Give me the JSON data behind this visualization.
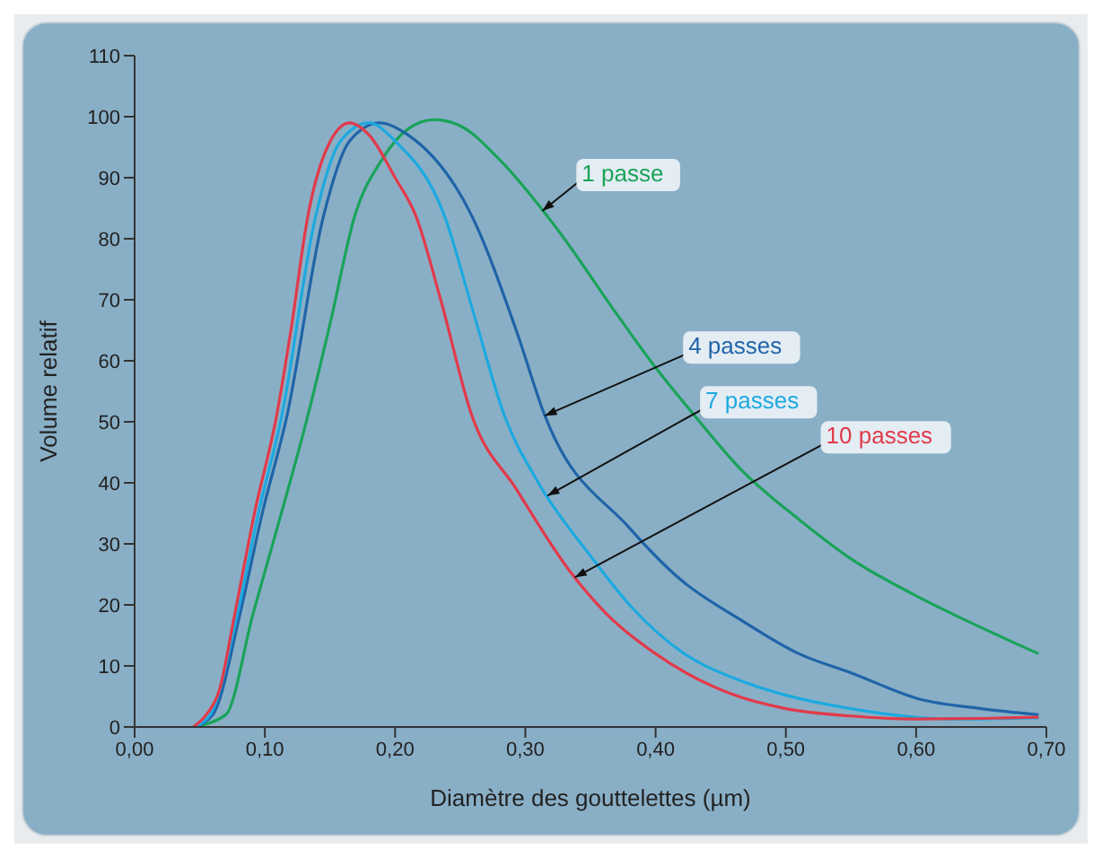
{
  "chart_data": {
    "type": "line",
    "xlabel": "Diamètre des gouttelettes (µm)",
    "ylabel": "Volume relatif",
    "xlim": [
      0,
      0.7
    ],
    "ylim": [
      0,
      110
    ],
    "xticks": [
      {
        "value": 0,
        "label": "0,00"
      },
      {
        "value": 0.1,
        "label": "0,10"
      },
      {
        "value": 0.2,
        "label": "0,20"
      },
      {
        "value": 0.3,
        "label": "0,30"
      },
      {
        "value": 0.4,
        "label": "0,40"
      },
      {
        "value": 0.5,
        "label": "0,50"
      },
      {
        "value": 0.6,
        "label": "0,60"
      },
      {
        "value": 0.7,
        "label": "0,70"
      }
    ],
    "yticks": [
      0,
      10,
      20,
      30,
      40,
      50,
      60,
      70,
      80,
      90,
      100,
      110
    ],
    "grid": false,
    "legend": false,
    "marker": "none",
    "line_style": "solid",
    "series": [
      {
        "name": "1 passe",
        "color": "#1aa35a",
        "x": [
          0.045,
          0.07,
          0.091,
          0.11,
          0.133,
          0.15,
          0.169,
          0.19,
          0.21,
          0.23,
          0.25,
          0.28,
          0.323,
          0.371,
          0.396,
          0.43,
          0.465,
          0.51,
          0.551,
          0.6,
          0.637,
          0.694
        ],
        "values": [
          0,
          2,
          18.6,
          33,
          51,
          66,
          83.7,
          93,
          98,
          99.5,
          98.5,
          93,
          82,
          67.4,
          60,
          51,
          42.3,
          34,
          27.4,
          21.5,
          17.6,
          12
        ]
      },
      {
        "name": "4 passes",
        "color": "#1f64a8",
        "x": [
          0.045,
          0.06,
          0.081,
          0.098,
          0.117,
          0.145,
          0.165,
          0.188,
          0.21,
          0.259,
          0.293,
          0.315,
          0.38,
          0.42,
          0.465,
          0.51,
          0.551,
          0.602,
          0.65,
          0.694
        ],
        "values": [
          0,
          2,
          18.6,
          35,
          51,
          83.7,
          96,
          99,
          97,
          83.7,
          65,
          51,
          32.6,
          24,
          17.6,
          12,
          8.8,
          4.6,
          3,
          2
        ]
      },
      {
        "name": "7 passes",
        "color": "#1ca9e0",
        "x": [
          0.045,
          0.058,
          0.079,
          0.095,
          0.113,
          0.139,
          0.158,
          0.18,
          0.2,
          0.238,
          0.26,
          0.284,
          0.31,
          0.349,
          0.38,
          0.422,
          0.46,
          0.495,
          0.55,
          0.628,
          0.694
        ],
        "values": [
          0,
          2,
          18.6,
          35,
          51,
          83.7,
          96,
          99,
          96,
          83.7,
          68,
          51,
          40,
          28.3,
          20,
          12,
          8,
          5.5,
          3,
          1.3,
          1.5
        ]
      },
      {
        "name": "10 passes",
        "color": "#e23a4a",
        "x": [
          0.045,
          0.055,
          0.065,
          0.077,
          0.092,
          0.109,
          0.12,
          0.133,
          0.148,
          0.165,
          0.18,
          0.2,
          0.216,
          0.235,
          0.259,
          0.293,
          0.336,
          0.362,
          0.4,
          0.457,
          0.5,
          0.55,
          0.6,
          0.65,
          0.694
        ],
        "values": [
          0,
          2,
          6,
          18.6,
          35,
          51,
          65,
          83.7,
          95,
          99,
          97,
          90,
          83.7,
          70,
          51,
          39,
          25,
          18.6,
          12,
          5.5,
          3,
          1.8,
          1.3,
          1.4,
          1.6
        ]
      }
    ]
  }
}
